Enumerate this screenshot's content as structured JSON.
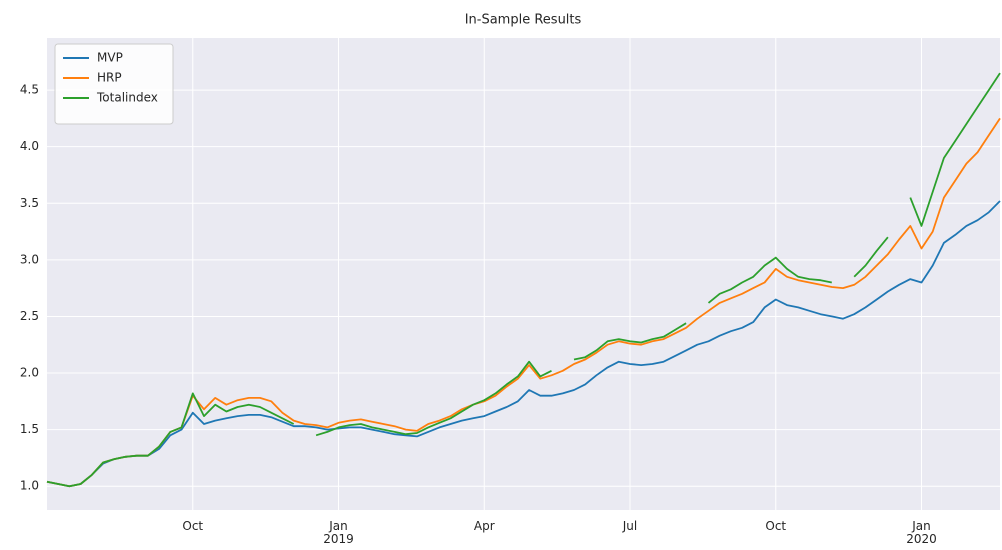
{
  "chart_data": {
    "type": "line",
    "title": "In-Sample Results",
    "categories": [
      null,
      null,
      null,
      null,
      null,
      null,
      null,
      null,
      null,
      null,
      null,
      null,
      null,
      "Oct",
      null,
      null,
      null,
      null,
      null,
      null,
      null,
      null,
      null,
      null,
      null,
      null,
      "Jan\n2019",
      null,
      null,
      null,
      null,
      null,
      null,
      null,
      null,
      null,
      null,
      null,
      null,
      "Apr",
      null,
      null,
      null,
      null,
      null,
      null,
      null,
      null,
      null,
      null,
      null,
      null,
      "Jul",
      null,
      null,
      null,
      null,
      null,
      null,
      null,
      null,
      null,
      null,
      null,
      null,
      "Oct",
      null,
      null,
      null,
      null,
      null,
      null,
      null,
      null,
      null,
      null,
      null,
      null,
      "Jan\n2020",
      null,
      null,
      null,
      null,
      null,
      null,
      null
    ],
    "series": [
      {
        "name": "MVP",
        "color": "#1f77b4",
        "values": [
          1.04,
          1.02,
          1.0,
          1.02,
          1.1,
          1.2,
          1.24,
          1.26,
          1.27,
          1.27,
          1.33,
          1.45,
          1.5,
          1.65,
          1.55,
          1.58,
          1.6,
          1.62,
          1.63,
          1.63,
          1.61,
          1.57,
          1.53,
          1.53,
          1.52,
          1.5,
          1.51,
          1.52,
          1.52,
          1.5,
          1.48,
          1.46,
          1.45,
          1.44,
          1.48,
          1.52,
          1.55,
          1.58,
          1.6,
          1.62,
          1.66,
          1.7,
          1.75,
          1.85,
          1.8,
          1.8,
          1.82,
          1.85,
          1.9,
          1.98,
          2.05,
          2.1,
          2.08,
          2.07,
          2.08,
          2.1,
          2.15,
          2.2,
          2.25,
          2.28,
          2.33,
          2.37,
          2.4,
          2.45,
          2.58,
          2.65,
          2.6,
          2.58,
          2.55,
          2.52,
          2.5,
          2.48,
          2.52,
          2.58,
          2.65,
          2.72,
          2.78,
          2.83,
          2.8,
          2.95,
          3.15,
          3.22,
          3.3,
          3.35,
          3.42,
          3.52
        ]
      },
      {
        "name": "HRP",
        "color": "#ff7f0e",
        "values": [
          1.04,
          1.02,
          1.0,
          1.02,
          1.1,
          1.21,
          1.24,
          1.26,
          1.27,
          1.27,
          1.35,
          1.48,
          1.52,
          1.8,
          1.68,
          1.78,
          1.72,
          1.76,
          1.78,
          1.78,
          1.75,
          1.65,
          1.58,
          1.55,
          1.54,
          1.52,
          1.56,
          1.58,
          1.59,
          1.57,
          1.55,
          1.53,
          1.5,
          1.49,
          1.55,
          1.58,
          1.62,
          1.68,
          1.72,
          1.75,
          1.8,
          1.88,
          1.95,
          2.07,
          1.95,
          1.98,
          2.02,
          2.08,
          2.12,
          2.18,
          2.25,
          2.28,
          2.26,
          2.25,
          2.28,
          2.3,
          2.35,
          2.4,
          2.48,
          2.55,
          2.62,
          2.66,
          2.7,
          2.75,
          2.8,
          2.92,
          2.85,
          2.82,
          2.8,
          2.78,
          2.76,
          2.75,
          2.78,
          2.85,
          2.95,
          3.05,
          3.18,
          3.3,
          3.1,
          3.25,
          3.55,
          3.7,
          3.85,
          3.95,
          4.1,
          4.25
        ]
      },
      {
        "name": "Totalindex",
        "color": "#2ca02c",
        "values": [
          1.04,
          1.02,
          1.0,
          1.02,
          1.1,
          1.21,
          1.24,
          1.26,
          1.27,
          1.27,
          1.35,
          1.48,
          1.52,
          1.82,
          1.62,
          1.72,
          1.66,
          1.7,
          1.72,
          1.7,
          1.65,
          1.6,
          1.55,
          null,
          1.45,
          1.48,
          1.52,
          1.54,
          1.55,
          1.52,
          1.5,
          1.48,
          1.46,
          1.47,
          1.52,
          1.56,
          1.6,
          1.66,
          1.72,
          1.76,
          1.82,
          1.9,
          1.97,
          2.1,
          1.97,
          2.02,
          null,
          2.12,
          2.14,
          2.2,
          2.28,
          2.3,
          2.28,
          2.27,
          2.3,
          2.32,
          2.38,
          2.44,
          null,
          2.62,
          2.7,
          2.74,
          2.8,
          2.85,
          2.95,
          3.02,
          2.92,
          2.85,
          2.83,
          2.82,
          2.8,
          null,
          2.85,
          2.95,
          3.08,
          3.2,
          null,
          3.55,
          3.3,
          3.6,
          3.9,
          4.05,
          4.2,
          4.35,
          4.5,
          4.65
        ]
      }
    ],
    "ylim": [
      0.79,
      4.96
    ],
    "yticks": [
      {
        "value": 1,
        "label": "1.0"
      },
      1.5,
      {
        "value": 2,
        "label": "2.0"
      },
      2.5,
      {
        "value": 3,
        "label": "3.0"
      },
      3.5,
      {
        "value": 4,
        "label": "4.0"
      },
      4.5
    ],
    "grid": true,
    "legend": "upper left"
  }
}
